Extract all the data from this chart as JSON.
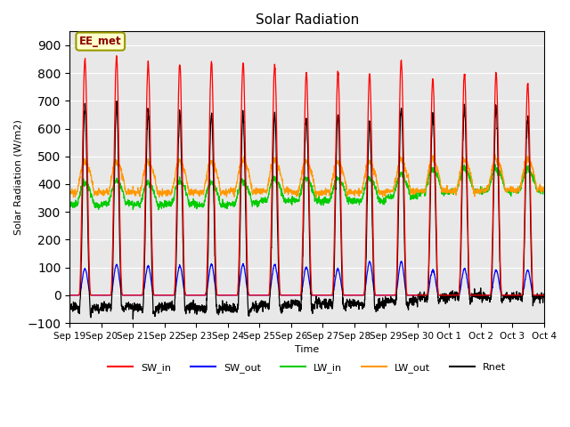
{
  "title": "Solar Radiation",
  "ylabel": "Solar Radiation (W/m2)",
  "xlabel": "Time",
  "ylim": [
    -100,
    950
  ],
  "yticks": [
    -100,
    0,
    100,
    200,
    300,
    400,
    500,
    600,
    700,
    800,
    900
  ],
  "bg_color": "#e8e8e8",
  "fig_color": "#ffffff",
  "annotation_text": "EE_met",
  "annotation_bg": "#ffffcc",
  "annotation_border": "#999900",
  "legend_entries": [
    "SW_in",
    "SW_out",
    "LW_in",
    "LW_out",
    "Rnet"
  ],
  "legend_colors": [
    "#ff0000",
    "#0000ff",
    "#00cc00",
    "#ff9900",
    "#000000"
  ],
  "num_days": 15,
  "x_tick_labels": [
    "Sep 19",
    "Sep 20",
    "Sep 21",
    "Sep 22",
    "Sep 23",
    "Sep 24",
    "Sep 25",
    "Sep 26",
    "Sep 27",
    "Sep 28",
    "Sep 29",
    "Sep 30",
    "Oct 1",
    "Oct 2",
    "Oct 3",
    "Oct 4"
  ],
  "sw_in_peaks": [
    850,
    860,
    840,
    835,
    840,
    840,
    830,
    800,
    800,
    800,
    845,
    780,
    800,
    800,
    760
  ],
  "sw_out_peaks": [
    95,
    110,
    105,
    105,
    110,
    110,
    110,
    100,
    95,
    120,
    120,
    90,
    95,
    90,
    90
  ],
  "lw_in_night": [
    325,
    330,
    325,
    330,
    325,
    330,
    340,
    340,
    340,
    340,
    355,
    370,
    375,
    375,
    375
  ],
  "lw_out_night": [
    370,
    370,
    370,
    370,
    370,
    375,
    375,
    370,
    370,
    370,
    375,
    375,
    375,
    380,
    380
  ],
  "lw_in_day_bump": 80,
  "lw_out_day_bump": 110,
  "nighttime_rnet": -55
}
